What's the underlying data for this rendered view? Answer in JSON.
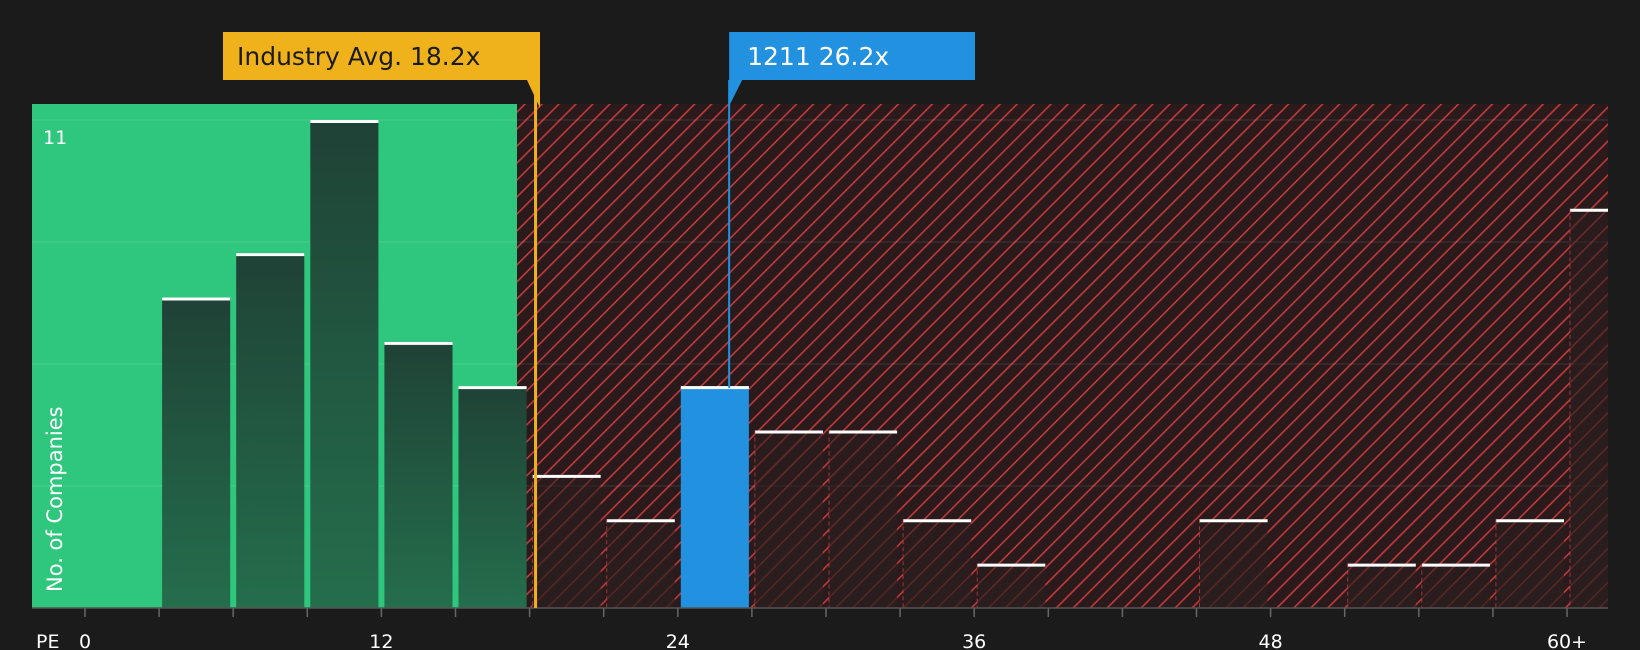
{
  "chart_data": {
    "type": "bar",
    "x_axis_label": "PE",
    "y_axis_label": "No. of Companies",
    "y_max_label": "11",
    "x_ticks": [
      "0",
      "12",
      "24",
      "36",
      "48",
      "60+"
    ],
    "x_tick_values": [
      0,
      12,
      24,
      36,
      48,
      60
    ],
    "bin_width": 3,
    "bins": [
      {
        "x0": 3,
        "count": 7
      },
      {
        "x0": 6,
        "count": 8
      },
      {
        "x0": 9,
        "count": 11
      },
      {
        "x0": 12,
        "count": 6
      },
      {
        "x0": 15,
        "count": 5
      },
      {
        "x0": 18,
        "count": 3
      },
      {
        "x0": 21,
        "count": 2
      },
      {
        "x0": 24,
        "count": 5,
        "highlight": true
      },
      {
        "x0": 27,
        "count": 4
      },
      {
        "x0": 30,
        "count": 4
      },
      {
        "x0": 33,
        "count": 2
      },
      {
        "x0": 36,
        "count": 1
      },
      {
        "x0": 39,
        "count": 0
      },
      {
        "x0": 42,
        "count": 0
      },
      {
        "x0": 45,
        "count": 2
      },
      {
        "x0": 48,
        "count": 0
      },
      {
        "x0": 51,
        "count": 1
      },
      {
        "x0": 54,
        "count": 1
      },
      {
        "x0": 57,
        "count": 2
      },
      {
        "x0": 60,
        "count": 9
      }
    ],
    "y_range": [
      0,
      11
    ],
    "x_range": [
      0,
      61.5
    ],
    "industry_avg": {
      "label": "Industry Avg. 18.2x",
      "value": 18.2
    },
    "company": {
      "label": "1211 26.2x",
      "value": 26.2
    },
    "colors": {
      "background": "#1b1b1b",
      "good_zone": "#2ec77d",
      "bad_zone": "#b03a3a",
      "bar_dark": "#1f4a38",
      "bar_company": "#2191e0",
      "industry_callout": "#f0b21a",
      "company_callout": "#2191e0",
      "cap_line": "#ffffff"
    }
  }
}
